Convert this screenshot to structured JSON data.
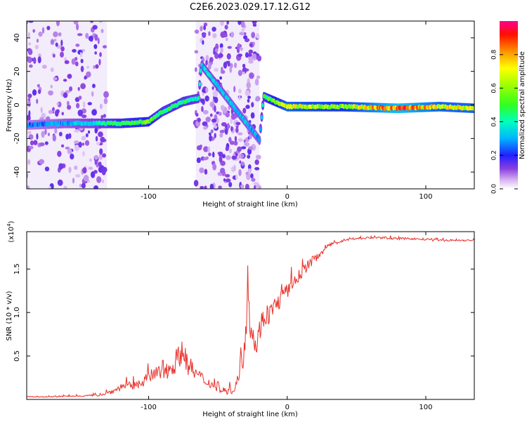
{
  "figure": {
    "title": "C2E6.2023.029.17.12.G12"
  },
  "chart_data": [
    {
      "type": "heatmap",
      "xlabel": "Height of straight line (km)",
      "ylabel": "Frequency (Hz)",
      "xlim": [
        -188,
        135
      ],
      "ylim": [
        -50,
        50
      ],
      "xticks": [
        -100,
        0,
        100
      ],
      "yticks": [
        -40,
        -20,
        0,
        20,
        40
      ],
      "colorbar": {
        "label": "Normalized spectral amplitude",
        "range": [
          0,
          1
        ],
        "ticks": [
          0.0,
          0.2,
          0.4,
          0.6,
          0.8
        ]
      },
      "ridge": [
        {
          "x": -188,
          "y": -12,
          "amp": 0.25
        },
        {
          "x": -160,
          "y": -11,
          "amp": 0.3
        },
        {
          "x": -140,
          "y": -11,
          "amp": 0.35
        },
        {
          "x": -120,
          "y": -11,
          "amp": 0.5
        },
        {
          "x": -100,
          "y": -10,
          "amp": 0.55
        },
        {
          "x": -90,
          "y": -4,
          "amp": 0.45
        },
        {
          "x": -75,
          "y": 2,
          "amp": 0.45
        },
        {
          "x": -64,
          "y": 4,
          "amp": 0.4
        },
        {
          "x": -62,
          "y": 24,
          "amp": 0.35
        },
        {
          "x": -20,
          "y": -21,
          "amp": 0.3
        },
        {
          "x": -17,
          "y": 5,
          "amp": 0.45
        },
        {
          "x": 0,
          "y": -1,
          "amp": 0.7
        },
        {
          "x": 40,
          "y": -1,
          "amp": 0.6
        },
        {
          "x": 80,
          "y": -2,
          "amp": 0.9
        },
        {
          "x": 110,
          "y": -1,
          "amp": 0.7
        },
        {
          "x": 135,
          "y": -2,
          "amp": 0.7
        }
      ],
      "noise_bands_x": [
        [
          -188,
          -130
        ],
        [
          -66,
          -20
        ]
      ]
    },
    {
      "type": "line",
      "xlabel": "Height of straight line (km)",
      "ylabel": "SNR (10 * v/v)",
      "multiplier": "(x10",
      "multiplier_exp": "4",
      "multiplier_close": ")",
      "xlim": [
        -188,
        135
      ],
      "ylim": [
        0.0,
        1.93
      ],
      "xticks": [
        -100,
        0,
        100
      ],
      "yticks": [
        0.5,
        1.0,
        1.5
      ],
      "series": [
        {
          "color": "#e8302a",
          "x": [
            -188,
            -170,
            -150,
            -135,
            -125,
            -118,
            -110,
            -100,
            -95,
            -88,
            -80,
            -76,
            -72,
            -66,
            -60,
            -55,
            -50,
            -45,
            -40,
            -36,
            -32,
            -30,
            -28,
            -27,
            -25,
            -22,
            -20,
            -18,
            -15,
            -10,
            -5,
            0,
            5,
            10,
            15,
            20,
            25,
            30,
            35,
            40,
            50,
            60,
            70,
            80,
            90,
            100,
            110,
            120,
            135
          ],
          "y": [
            0.03,
            0.03,
            0.04,
            0.05,
            0.1,
            0.16,
            0.15,
            0.25,
            0.3,
            0.3,
            0.45,
            0.55,
            0.4,
            0.3,
            0.22,
            0.18,
            0.12,
            0.1,
            0.1,
            0.2,
            0.45,
            0.85,
            1.3,
            0.9,
            0.75,
            0.6,
            0.8,
            0.9,
            0.95,
            1.05,
            1.15,
            1.25,
            1.35,
            1.45,
            1.55,
            1.62,
            1.7,
            1.76,
            1.8,
            1.83,
            1.85,
            1.86,
            1.86,
            1.85,
            1.85,
            1.84,
            1.83,
            1.83,
            1.83
          ],
          "jitter": [
            0.005,
            0.006,
            0.008,
            0.01,
            0.03,
            0.04,
            0.05,
            0.07,
            0.09,
            0.11,
            0.14,
            0.13,
            0.12,
            0.1,
            0.07,
            0.05,
            0.04,
            0.04,
            0.04,
            0.08,
            0.14,
            0.22,
            0.2,
            0.16,
            0.14,
            0.13,
            0.13,
            0.12,
            0.12,
            0.11,
            0.1,
            0.09,
            0.08,
            0.07,
            0.06,
            0.05,
            0.04,
            0.03,
            0.02,
            0.015,
            0.012,
            0.012,
            0.012,
            0.012,
            0.012,
            0.014,
            0.012,
            0.01,
            0.01
          ]
        }
      ]
    }
  ]
}
